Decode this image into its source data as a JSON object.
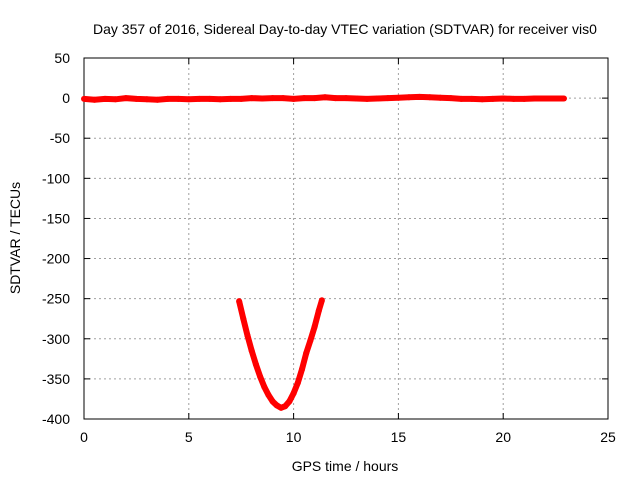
{
  "chart_data": {
    "type": "line",
    "title": "Day 357 of 2016, Sidereal Day-to-day VTEC variation (SDTVAR) for receiver vis0",
    "xlabel": "GPS time / hours",
    "ylabel": "SDTVAR / TECUs",
    "xlim": [
      0,
      25
    ],
    "ylim": [
      -400,
      50
    ],
    "xticks": [
      0,
      5,
      10,
      15,
      20,
      25
    ],
    "yticks": [
      50,
      0,
      -50,
      -100,
      -150,
      -200,
      -250,
      -300,
      -350,
      -400
    ],
    "grid": true,
    "legend": "none",
    "series_color": "#ff0000",
    "series": [
      {
        "x": [
          0,
          0.5,
          1,
          1.5,
          2,
          2.5,
          3,
          3.5,
          4,
          4.5,
          5,
          5.5,
          6,
          6.5,
          7,
          7.5,
          8,
          8.5,
          9,
          9.5,
          10,
          10.5,
          11,
          11.5,
          12,
          12.5,
          13,
          13.5,
          14,
          14.5,
          15,
          15.5,
          16,
          16.5,
          17,
          17.5,
          18,
          18.5,
          19,
          19.5,
          20,
          20.5,
          21,
          21.5,
          22,
          22.5,
          22.9
        ],
        "y": [
          -1,
          -2,
          -1,
          -1.5,
          0,
          -1,
          -1.5,
          -2,
          -1,
          -1,
          -1.5,
          -1,
          -1,
          -1.5,
          -1,
          -1,
          0,
          -0.5,
          0,
          0,
          -1,
          0,
          0,
          1,
          0,
          0,
          -0.5,
          -1,
          -0.5,
          0,
          0.5,
          1,
          1.5,
          1,
          0.5,
          0,
          -1,
          -1,
          -1.5,
          -1,
          -0.5,
          -1,
          -1,
          -0.5,
          -0.5,
          -0.5,
          -0.5
        ]
      },
      {
        "x": [
          7.4,
          7.6,
          7.8,
          8.0,
          8.2,
          8.4,
          8.6,
          8.8,
          9.0,
          9.2,
          9.4,
          9.6,
          9.8,
          10.0,
          10.2,
          10.4,
          10.6,
          10.8,
          11.0,
          11.2,
          11.35
        ],
        "y": [
          -253,
          -275,
          -296,
          -315,
          -332,
          -347,
          -360,
          -370,
          -378,
          -383,
          -386,
          -384,
          -378,
          -368,
          -355,
          -338,
          -318,
          -302,
          -285,
          -265,
          -252
        ]
      }
    ]
  }
}
